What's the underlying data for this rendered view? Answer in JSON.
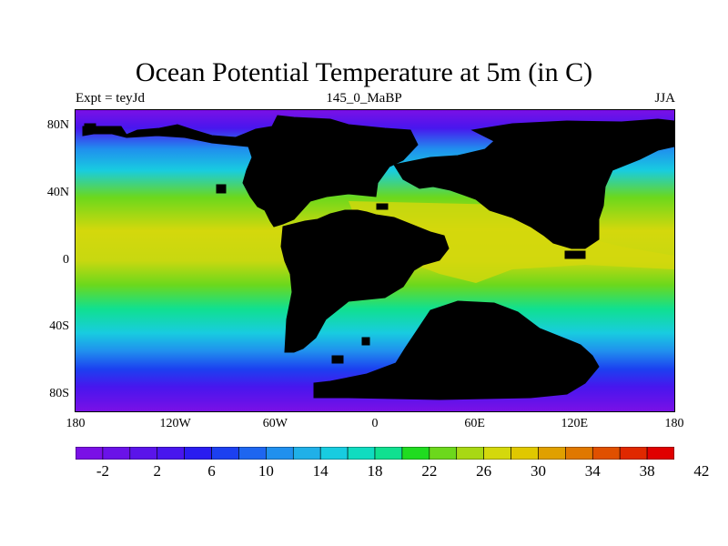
{
  "title": "Ocean Potential Temperature at 5m (in C)",
  "subtitle_left": "Expt = teyJd",
  "subtitle_center": "145_0_MaBP",
  "subtitle_right": "JJA",
  "map": {
    "projection": "cylindrical-equidistant",
    "lon_range": [
      -180,
      180
    ],
    "lat_range": [
      -90,
      90
    ],
    "land_color": "#999999",
    "lon_ticks": [
      {
        "value": -180,
        "label": "180"
      },
      {
        "value": -120,
        "label": "120W"
      },
      {
        "value": -60,
        "label": "60W"
      },
      {
        "value": 0,
        "label": "0"
      },
      {
        "value": 60,
        "label": "60E"
      },
      {
        "value": 120,
        "label": "120E"
      },
      {
        "value": 180,
        "label": "180"
      }
    ],
    "lat_ticks": [
      {
        "value": 80,
        "label": "80N"
      },
      {
        "value": 40,
        "label": "40N"
      },
      {
        "value": 0,
        "label": "0"
      },
      {
        "value": -40,
        "label": "40S"
      },
      {
        "value": -80,
        "label": "80S"
      }
    ]
  },
  "colorbar": {
    "colors": [
      "#7a10e6",
      "#6a12e8",
      "#5a14ea",
      "#4816ee",
      "#2a1cf0",
      "#1c40f0",
      "#1e66f0",
      "#2090ee",
      "#20b0e8",
      "#18cce0",
      "#10dcc0",
      "#10e090",
      "#20dc20",
      "#6cd81c",
      "#a8d814",
      "#d4d80c",
      "#e0c800",
      "#e0a000",
      "#e07800",
      "#e05000",
      "#e02800",
      "#e00000"
    ],
    "tick_labels": [
      {
        "value": -2,
        "label": "-2"
      },
      {
        "value": 2,
        "label": "2"
      },
      {
        "value": 6,
        "label": "6"
      },
      {
        "value": 10,
        "label": "10"
      },
      {
        "value": 14,
        "label": "14"
      },
      {
        "value": 18,
        "label": "18"
      },
      {
        "value": 22,
        "label": "22"
      },
      {
        "value": 26,
        "label": "26"
      },
      {
        "value": 30,
        "label": "30"
      },
      {
        "value": 34,
        "label": "34"
      },
      {
        "value": 38,
        "label": "38"
      },
      {
        "value": 42,
        "label": "42"
      }
    ]
  }
}
